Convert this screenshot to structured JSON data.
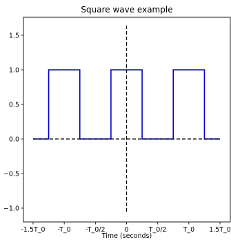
{
  "chart_data": {
    "type": "line",
    "title": "Square wave example",
    "xlabel": "Time (seconds)",
    "ylabel": "",
    "xlim": [
      -1.5,
      1.5
    ],
    "ylim": [
      -1.2,
      1.7
    ],
    "grid": false,
    "x_ticks": [
      {
        "value": -1.5,
        "label": "-1.5T_0"
      },
      {
        "value": -1.0,
        "label": "-T_0"
      },
      {
        "value": -0.5,
        "label": "-T_0/2"
      },
      {
        "value": 0.0,
        "label": "0"
      },
      {
        "value": 0.5,
        "label": "T_0/2"
      },
      {
        "value": 1.0,
        "label": "T_0"
      },
      {
        "value": 1.5,
        "label": "1.5T_0"
      }
    ],
    "y_ticks": [
      {
        "value": -1.0,
        "label": "−1.0"
      },
      {
        "value": -0.5,
        "label": "−0.5"
      },
      {
        "value": 0.0,
        "label": "0.0"
      },
      {
        "value": 0.5,
        "label": "0.5"
      },
      {
        "value": 1.0,
        "label": "1.0"
      },
      {
        "value": 1.5,
        "label": "1.5"
      }
    ],
    "series": [
      {
        "style": "solid",
        "color": "#0000cc",
        "x": [
          -1.5,
          -1.25,
          -1.25,
          -0.75,
          -0.75,
          -0.25,
          -0.25,
          0.25,
          0.25,
          0.75,
          0.75,
          1.25,
          1.25,
          1.5
        ],
        "y": [
          0,
          0,
          1,
          1,
          0,
          0,
          1,
          1,
          0,
          0,
          1,
          1,
          0,
          0
        ]
      },
      {
        "style": "dashed",
        "color": "#000000",
        "x": [
          -1.5,
          1.5
        ],
        "y": [
          0,
          0
        ]
      },
      {
        "style": "dashed",
        "color": "#000000",
        "x": [
          0,
          0
        ],
        "y": [
          -1.05,
          1.65
        ]
      }
    ]
  }
}
